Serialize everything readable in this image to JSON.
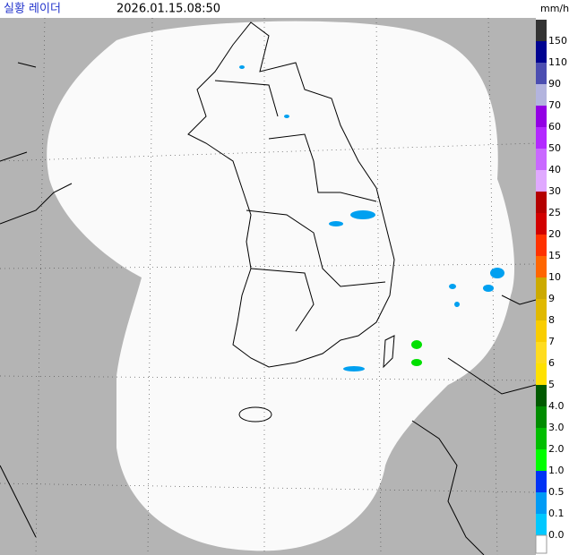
{
  "header": {
    "title": "실황 레이더",
    "time": "2026.01.15.08:50",
    "unit": "mm/h"
  },
  "legend": [
    {
      "label": "150",
      "color": "#333333"
    },
    {
      "label": "110",
      "color": "#000390"
    },
    {
      "label": "90",
      "color": "#4c4eb1"
    },
    {
      "label": "70",
      "color": "#b3b4de"
    },
    {
      "label": "60",
      "color": "#9300e4"
    },
    {
      "label": "50",
      "color": "#b329ff"
    },
    {
      "label": "40",
      "color": "#c969ff"
    },
    {
      "label": "30",
      "color": "#e0a9ff"
    },
    {
      "label": "25",
      "color": "#b40000"
    },
    {
      "label": "20",
      "color": "#d20000"
    },
    {
      "label": "15",
      "color": "#ff3200"
    },
    {
      "label": "10",
      "color": "#ff6600"
    },
    {
      "label": "9",
      "color": "#ccaa00"
    },
    {
      "label": "8",
      "color": "#e0b900"
    },
    {
      "label": "7",
      "color": "#f9cd00"
    },
    {
      "label": "6",
      "color": "#ffdc1f"
    },
    {
      "label": "5",
      "color": "#ffe100"
    },
    {
      "label": "4.0",
      "color": "#005a00"
    },
    {
      "label": "3.0",
      "color": "#008c00"
    },
    {
      "label": "2.0",
      "color": "#00be00"
    },
    {
      "label": "1.0",
      "color": "#00ff00"
    },
    {
      "label": "0.5",
      "color": "#0033f5"
    },
    {
      "label": "0.1",
      "color": "#009bf5"
    },
    {
      "label": "0.0",
      "color": "#00c8ff"
    }
  ]
}
